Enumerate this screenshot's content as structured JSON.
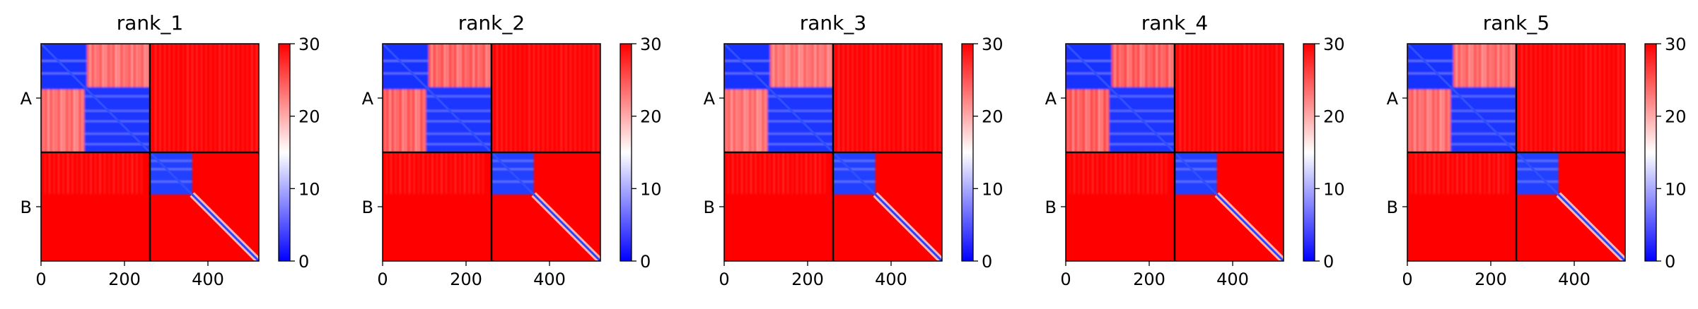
{
  "chart_data": {
    "type": "heatmap",
    "description_kind": "pae-matrix-grid",
    "colormap": {
      "low": "#0000ff",
      "mid": "#ffffff",
      "high": "#ff0000"
    },
    "clim": [
      0,
      30
    ],
    "colorbar_ticks": [
      "0",
      "10",
      "20",
      "30"
    ],
    "x_ticks": [
      "0",
      "200",
      "400"
    ],
    "x_tick_values": [
      0,
      200,
      400
    ],
    "xlim": [
      0,
      522
    ],
    "chain_labels": [
      "A",
      "B"
    ],
    "chain_boundary": 261,
    "panels": [
      {
        "title": "rank_1"
      },
      {
        "title": "rank_2"
      },
      {
        "title": "rank_3"
      },
      {
        "title": "rank_4"
      },
      {
        "title": "rank_5"
      }
    ]
  }
}
